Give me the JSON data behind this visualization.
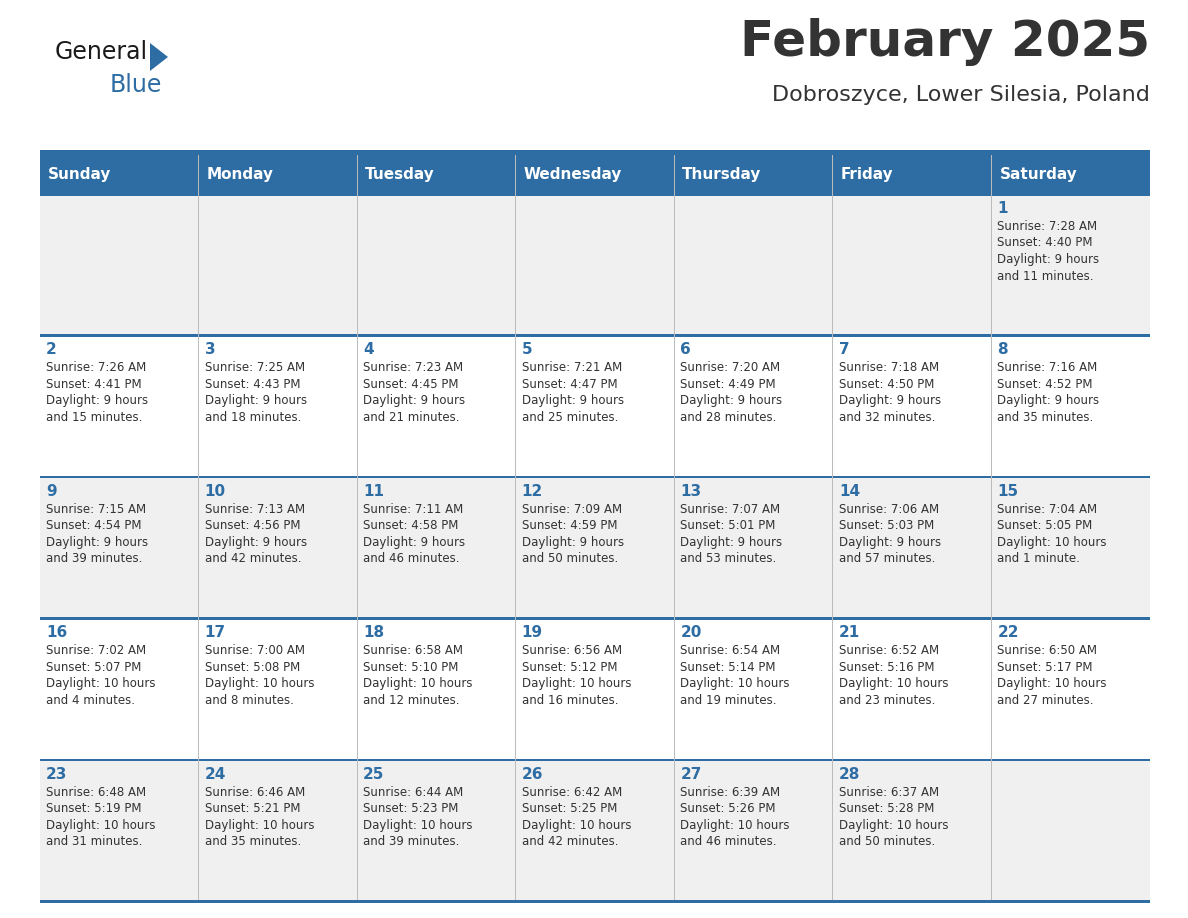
{
  "title": "February 2025",
  "subtitle": "Dobroszyce, Lower Silesia, Poland",
  "header_bg": "#2E6DA4",
  "header_text_color": "#FFFFFF",
  "cell_bg_light": "#F0F0F0",
  "cell_bg_white": "#FFFFFF",
  "text_color": "#333333",
  "day_number_color": "#2E6DA4",
  "border_color": "#2E6DA4",
  "days_of_week": [
    "Sunday",
    "Monday",
    "Tuesday",
    "Wednesday",
    "Thursday",
    "Friday",
    "Saturday"
  ],
  "weeks": [
    [
      {
        "day": "",
        "info": ""
      },
      {
        "day": "",
        "info": ""
      },
      {
        "day": "",
        "info": ""
      },
      {
        "day": "",
        "info": ""
      },
      {
        "day": "",
        "info": ""
      },
      {
        "day": "",
        "info": ""
      },
      {
        "day": "1",
        "info": "Sunrise: 7:28 AM\nSunset: 4:40 PM\nDaylight: 9 hours\nand 11 minutes."
      }
    ],
    [
      {
        "day": "2",
        "info": "Sunrise: 7:26 AM\nSunset: 4:41 PM\nDaylight: 9 hours\nand 15 minutes."
      },
      {
        "day": "3",
        "info": "Sunrise: 7:25 AM\nSunset: 4:43 PM\nDaylight: 9 hours\nand 18 minutes."
      },
      {
        "day": "4",
        "info": "Sunrise: 7:23 AM\nSunset: 4:45 PM\nDaylight: 9 hours\nand 21 minutes."
      },
      {
        "day": "5",
        "info": "Sunrise: 7:21 AM\nSunset: 4:47 PM\nDaylight: 9 hours\nand 25 minutes."
      },
      {
        "day": "6",
        "info": "Sunrise: 7:20 AM\nSunset: 4:49 PM\nDaylight: 9 hours\nand 28 minutes."
      },
      {
        "day": "7",
        "info": "Sunrise: 7:18 AM\nSunset: 4:50 PM\nDaylight: 9 hours\nand 32 minutes."
      },
      {
        "day": "8",
        "info": "Sunrise: 7:16 AM\nSunset: 4:52 PM\nDaylight: 9 hours\nand 35 minutes."
      }
    ],
    [
      {
        "day": "9",
        "info": "Sunrise: 7:15 AM\nSunset: 4:54 PM\nDaylight: 9 hours\nand 39 minutes."
      },
      {
        "day": "10",
        "info": "Sunrise: 7:13 AM\nSunset: 4:56 PM\nDaylight: 9 hours\nand 42 minutes."
      },
      {
        "day": "11",
        "info": "Sunrise: 7:11 AM\nSunset: 4:58 PM\nDaylight: 9 hours\nand 46 minutes."
      },
      {
        "day": "12",
        "info": "Sunrise: 7:09 AM\nSunset: 4:59 PM\nDaylight: 9 hours\nand 50 minutes."
      },
      {
        "day": "13",
        "info": "Sunrise: 7:07 AM\nSunset: 5:01 PM\nDaylight: 9 hours\nand 53 minutes."
      },
      {
        "day": "14",
        "info": "Sunrise: 7:06 AM\nSunset: 5:03 PM\nDaylight: 9 hours\nand 57 minutes."
      },
      {
        "day": "15",
        "info": "Sunrise: 7:04 AM\nSunset: 5:05 PM\nDaylight: 10 hours\nand 1 minute."
      }
    ],
    [
      {
        "day": "16",
        "info": "Sunrise: 7:02 AM\nSunset: 5:07 PM\nDaylight: 10 hours\nand 4 minutes."
      },
      {
        "day": "17",
        "info": "Sunrise: 7:00 AM\nSunset: 5:08 PM\nDaylight: 10 hours\nand 8 minutes."
      },
      {
        "day": "18",
        "info": "Sunrise: 6:58 AM\nSunset: 5:10 PM\nDaylight: 10 hours\nand 12 minutes."
      },
      {
        "day": "19",
        "info": "Sunrise: 6:56 AM\nSunset: 5:12 PM\nDaylight: 10 hours\nand 16 minutes."
      },
      {
        "day": "20",
        "info": "Sunrise: 6:54 AM\nSunset: 5:14 PM\nDaylight: 10 hours\nand 19 minutes."
      },
      {
        "day": "21",
        "info": "Sunrise: 6:52 AM\nSunset: 5:16 PM\nDaylight: 10 hours\nand 23 minutes."
      },
      {
        "day": "22",
        "info": "Sunrise: 6:50 AM\nSunset: 5:17 PM\nDaylight: 10 hours\nand 27 minutes."
      }
    ],
    [
      {
        "day": "23",
        "info": "Sunrise: 6:48 AM\nSunset: 5:19 PM\nDaylight: 10 hours\nand 31 minutes."
      },
      {
        "day": "24",
        "info": "Sunrise: 6:46 AM\nSunset: 5:21 PM\nDaylight: 10 hours\nand 35 minutes."
      },
      {
        "day": "25",
        "info": "Sunrise: 6:44 AM\nSunset: 5:23 PM\nDaylight: 10 hours\nand 39 minutes."
      },
      {
        "day": "26",
        "info": "Sunrise: 6:42 AM\nSunset: 5:25 PM\nDaylight: 10 hours\nand 42 minutes."
      },
      {
        "day": "27",
        "info": "Sunrise: 6:39 AM\nSunset: 5:26 PM\nDaylight: 10 hours\nand 46 minutes."
      },
      {
        "day": "28",
        "info": "Sunrise: 6:37 AM\nSunset: 5:28 PM\nDaylight: 10 hours\nand 50 minutes."
      },
      {
        "day": "",
        "info": ""
      }
    ]
  ],
  "logo_text_general": "General",
  "logo_text_blue": "Blue",
  "logo_color_general": "#1a1a1a",
  "logo_color_blue": "#2E6DA4",
  "logo_triangle_color": "#2E6DA4",
  "fig_width": 11.88,
  "fig_height": 9.18,
  "dpi": 100
}
